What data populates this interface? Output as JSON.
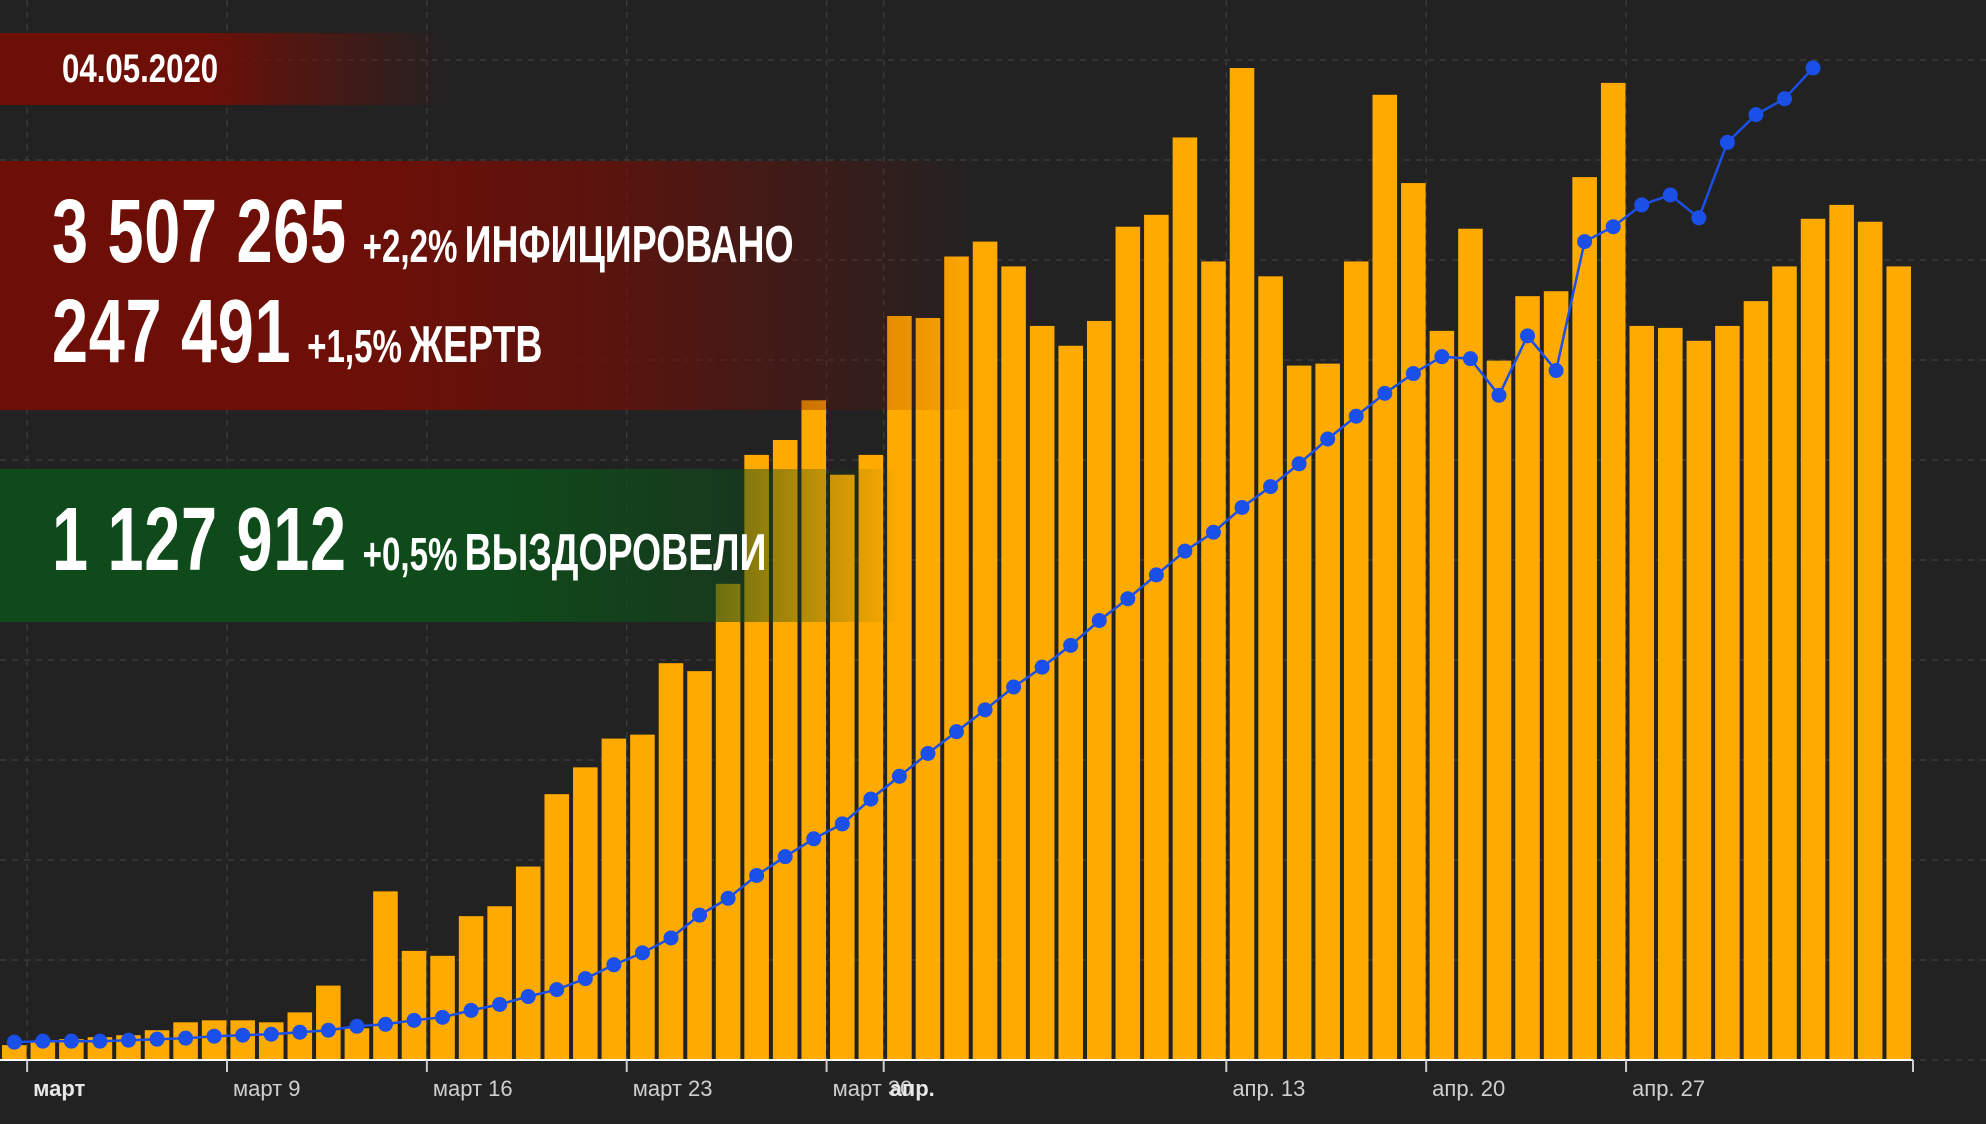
{
  "overlay": {
    "date": "04.05.2020",
    "infected": {
      "value": "3 507 265",
      "delta": "+2,2%",
      "label": "ИНФИЦИРОВАНО"
    },
    "deaths": {
      "value": "247 491",
      "delta": "+1,5%",
      "label": "ЖЕРТВ"
    },
    "recovered": {
      "value": "1 127 912",
      "delta": "+0,5%",
      "label": "ВЫЗДОРОВЕЛИ"
    }
  },
  "colors": {
    "bars": "#FFAA00",
    "line": "#1A4FE8",
    "background": "#222222",
    "grid": "#3A3A3A",
    "infected_band": "#6E0F07",
    "recovered_band": "#0F4A1A"
  },
  "chart_data": {
    "type": "bar",
    "x_tick_labels": [
      {
        "label": "март",
        "index": 1,
        "bold": true
      },
      {
        "label": "март 9",
        "index": 8,
        "bold": false
      },
      {
        "label": "март 16",
        "index": 15,
        "bold": false
      },
      {
        "label": "март 23",
        "index": 22,
        "bold": false
      },
      {
        "label": "март 30",
        "index": 29,
        "bold": false
      },
      {
        "label": "апр.",
        "index": 31,
        "bold": true
      },
      {
        "label": "апр. 13",
        "index": 43,
        "bold": false
      },
      {
        "label": "апр. 20",
        "index": 50,
        "bold": false
      },
      {
        "label": "апр. 27",
        "index": 57,
        "bold": false
      }
    ],
    "series": [
      {
        "kind": "bar",
        "values": [
          1.5,
          1.8,
          2.1,
          2.3,
          2.5,
          3.0,
          3.8,
          4.0,
          4.0,
          3.8,
          4.8,
          7.5,
          3.2,
          17.0,
          11.0,
          10.5,
          14.5,
          15.5,
          19.5,
          26.8,
          29.5,
          32.4,
          32.8,
          40.0,
          39.2,
          48.0,
          61.0,
          62.5,
          66.5,
          59.0,
          61.0,
          75.0,
          74.8,
          81.0,
          82.5,
          80.0,
          74.0,
          72.0,
          74.5,
          84.0,
          85.2,
          93.0,
          80.5,
          100.0,
          79.0,
          70.0,
          70.2,
          80.5,
          97.3,
          88.4,
          73.5,
          83.8,
          70.5,
          77.0,
          77.5,
          89.0,
          98.5,
          74.0,
          73.8,
          72.5,
          74.0,
          76.5,
          80.0,
          84.8,
          86.2,
          84.5,
          80.0
        ]
      },
      {
        "kind": "line",
        "values": [
          1.8,
          1.9,
          1.9,
          1.9,
          2.0,
          2.1,
          2.2,
          2.4,
          2.5,
          2.6,
          2.8,
          3.0,
          3.4,
          3.6,
          4.0,
          4.3,
          5.0,
          5.6,
          6.4,
          7.1,
          8.2,
          9.6,
          10.8,
          12.3,
          14.6,
          16.3,
          18.6,
          20.5,
          22.3,
          23.8,
          26.3,
          28.6,
          30.9,
          33.1,
          35.3,
          37.6,
          39.6,
          41.8,
          44.3,
          46.5,
          48.9,
          51.3,
          53.2,
          55.7,
          57.8,
          60.1,
          62.6,
          64.9,
          67.2,
          69.2,
          70.9,
          70.7,
          67.0,
          73.0,
          69.5,
          82.5,
          84.0,
          86.2,
          87.2,
          84.9,
          92.5,
          95.3,
          96.9,
          100.0
        ]
      }
    ],
    "xlabel": "",
    "ylabel": "",
    "ylim": [
      0,
      100
    ],
    "grid": true,
    "legend": "none"
  }
}
